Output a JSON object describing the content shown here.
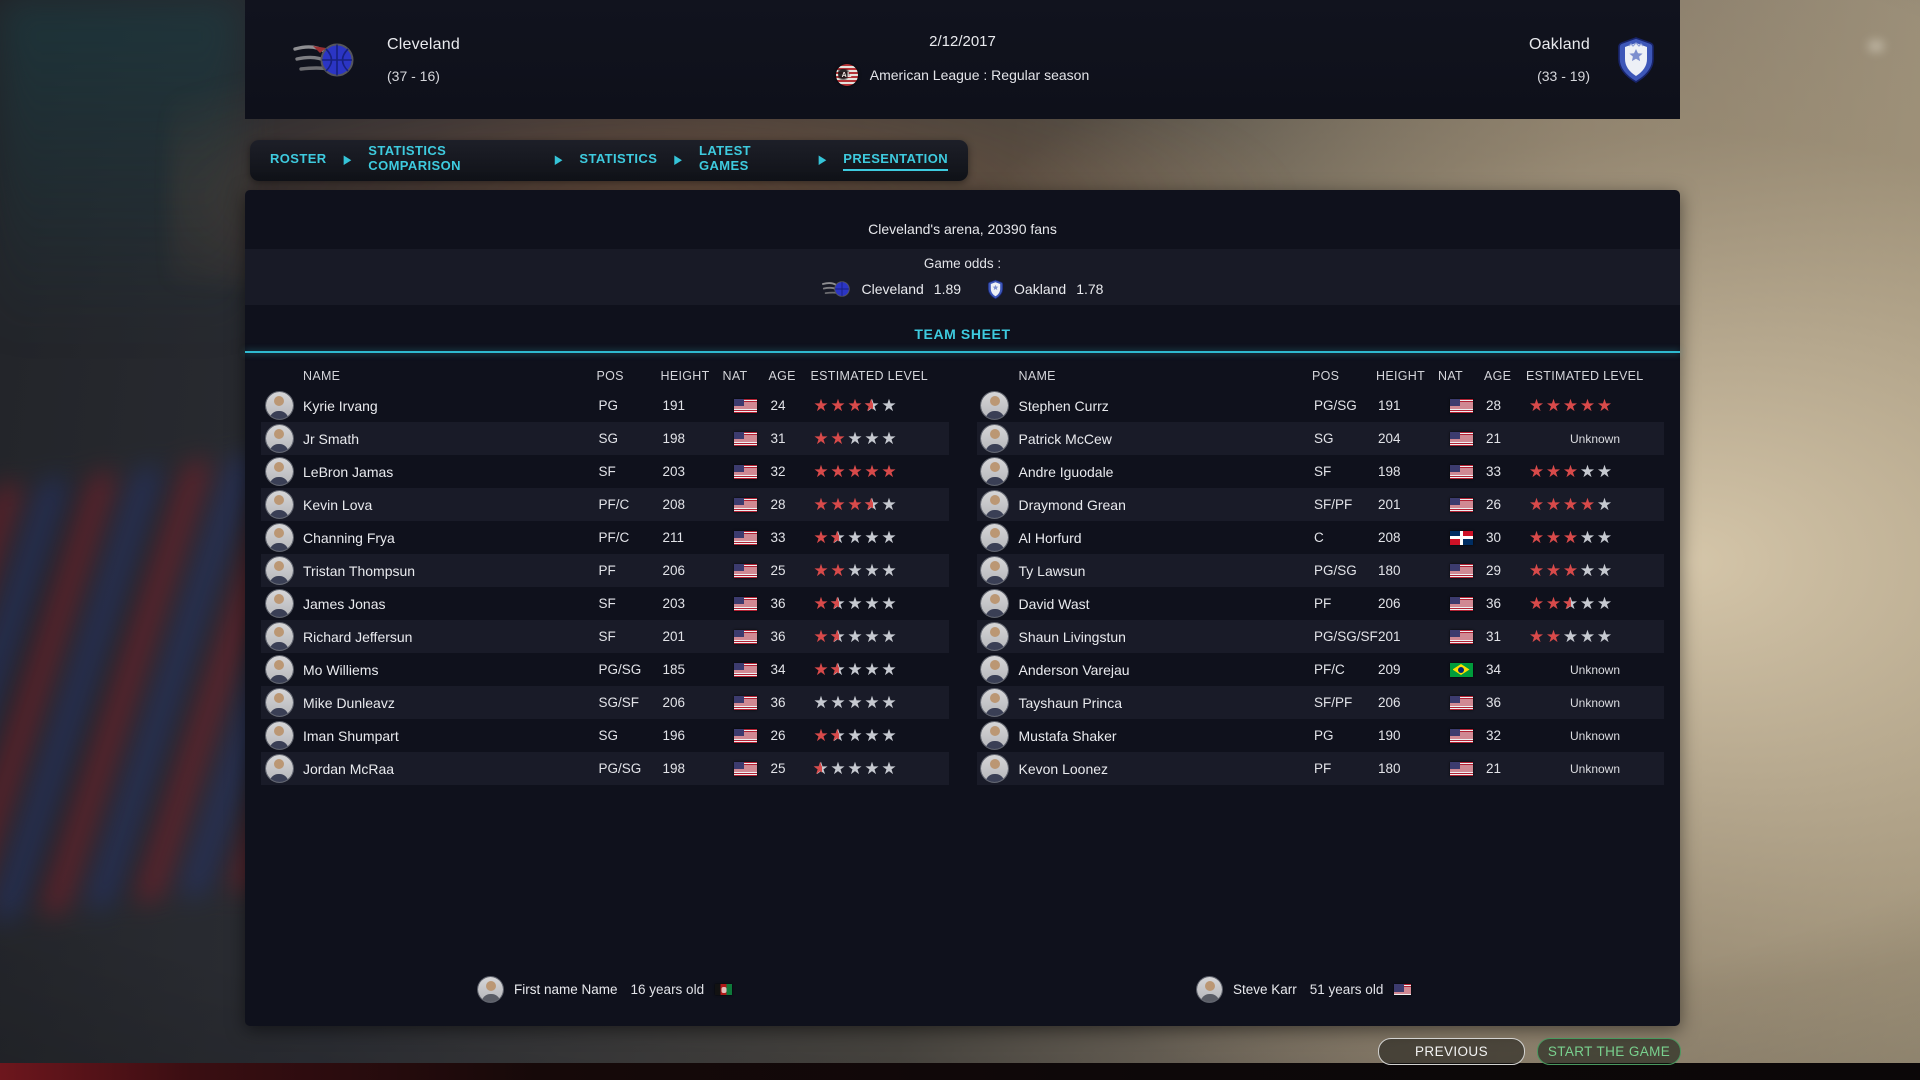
{
  "scoreboard": {
    "home": {
      "name": "Cleveland",
      "record": "(37 - 16)"
    },
    "away": {
      "name": "Oakland",
      "record": "(33 - 19)"
    },
    "date": "2/12/2017",
    "league": "American League : Regular season",
    "league_badge": "AL"
  },
  "tabs": [
    {
      "label": "ROSTER",
      "active": false
    },
    {
      "label": "STATISTICS COMPARISON",
      "active": false
    },
    {
      "label": "STATISTICS",
      "active": false
    },
    {
      "label": "LATEST GAMES",
      "active": false
    },
    {
      "label": "PRESENTATION",
      "active": true
    }
  ],
  "match_info": {
    "arena": "Cleveland's arena, 20390 fans",
    "odds_label": "Game odds :",
    "odds": [
      {
        "team": "Cleveland",
        "value": "1.89"
      },
      {
        "team": "Oakland",
        "value": "1.78"
      }
    ]
  },
  "team_sheet": {
    "title": "TEAM SHEET",
    "columns": [
      "NAME",
      "POS",
      "HEIGHT",
      "NAT",
      "AGE",
      "ESTIMATED LEVEL"
    ],
    "unknown_label": "Unknown",
    "home_players": [
      {
        "name": "Kyrie Irvang",
        "pos": "PG",
        "height": "191",
        "nat": "us",
        "age": "24",
        "rating": 3.5
      },
      {
        "name": "Jr Smath",
        "pos": "SG",
        "height": "198",
        "nat": "us",
        "age": "31",
        "rating": 2
      },
      {
        "name": "LeBron Jamas",
        "pos": "SF",
        "height": "203",
        "nat": "us",
        "age": "32",
        "rating": 5
      },
      {
        "name": "Kevin Lova",
        "pos": "PF/C",
        "height": "208",
        "nat": "us",
        "age": "28",
        "rating": 3.5
      },
      {
        "name": "Channing Frya",
        "pos": "PF/C",
        "height": "211",
        "nat": "us",
        "age": "33",
        "rating": 1.5
      },
      {
        "name": "Tristan Thompsun",
        "pos": "PF",
        "height": "206",
        "nat": "us",
        "age": "25",
        "rating": 2
      },
      {
        "name": "James Jonas",
        "pos": "SF",
        "height": "203",
        "nat": "us",
        "age": "36",
        "rating": 1.5
      },
      {
        "name": "Richard Jeffersun",
        "pos": "SF",
        "height": "201",
        "nat": "us",
        "age": "36",
        "rating": 1.5
      },
      {
        "name": "Mo Williems",
        "pos": "PG/SG",
        "height": "185",
        "nat": "us",
        "age": "34",
        "rating": 1.5
      },
      {
        "name": "Mike Dunleavz",
        "pos": "SG/SF",
        "height": "206",
        "nat": "us",
        "age": "36",
        "rating": 0
      },
      {
        "name": "Iman Shumpart",
        "pos": "SG",
        "height": "196",
        "nat": "us",
        "age": "26",
        "rating": 1.5
      },
      {
        "name": "Jordan McRaa",
        "pos": "PG/SG",
        "height": "198",
        "nat": "us",
        "age": "25",
        "rating": 0.5
      }
    ],
    "away_players": [
      {
        "name": "Stephen Currz",
        "pos": "PG/SG",
        "height": "191",
        "nat": "us",
        "age": "28",
        "rating": 5
      },
      {
        "name": "Patrick McCew",
        "pos": "SG",
        "height": "204",
        "nat": "us",
        "age": "21",
        "rating": null
      },
      {
        "name": "Andre Iguodale",
        "pos": "SF",
        "height": "198",
        "nat": "us",
        "age": "33",
        "rating": 3
      },
      {
        "name": "Draymond Grean",
        "pos": "SF/PF",
        "height": "201",
        "nat": "us",
        "age": "26",
        "rating": 4
      },
      {
        "name": "Al Horfurd",
        "pos": "C",
        "height": "208",
        "nat": "do",
        "age": "30",
        "rating": 3
      },
      {
        "name": "Ty Lawsun",
        "pos": "PG/SG",
        "height": "180",
        "nat": "us",
        "age": "29",
        "rating": 3
      },
      {
        "name": "David Wast",
        "pos": "PF",
        "height": "206",
        "nat": "us",
        "age": "36",
        "rating": 2.5
      },
      {
        "name": "Shaun Livingstun",
        "pos": "PG/SG/SF",
        "height": "201",
        "nat": "us",
        "age": "31",
        "rating": 2
      },
      {
        "name": "Anderson Varejau",
        "pos": "PF/C",
        "height": "209",
        "nat": "br",
        "age": "34",
        "rating": null
      },
      {
        "name": "Tayshaun Princa",
        "pos": "SF/PF",
        "height": "206",
        "nat": "us",
        "age": "36",
        "rating": null
      },
      {
        "name": "Mustafa Shaker",
        "pos": "PG",
        "height": "190",
        "nat": "us",
        "age": "32",
        "rating": null
      },
      {
        "name": "Kevon Loonez",
        "pos": "PF",
        "height": "180",
        "nat": "us",
        "age": "21",
        "rating": null
      }
    ]
  },
  "coaches": {
    "home": {
      "name": "First name Name",
      "age": "16 years old",
      "nat": "af"
    },
    "away": {
      "name": "Steve Karr",
      "age": "51 years old",
      "nat": "us"
    }
  },
  "footer": {
    "previous_label": "PREVIOUS",
    "start_label": "START THE GAME"
  },
  "colors": {
    "accent_cyan": "#3ecbdf",
    "star_red": "#d84a4a",
    "star_gray": "#c6c9d0",
    "button_green": "#79d18e",
    "panel_bg": "#0f111c"
  }
}
